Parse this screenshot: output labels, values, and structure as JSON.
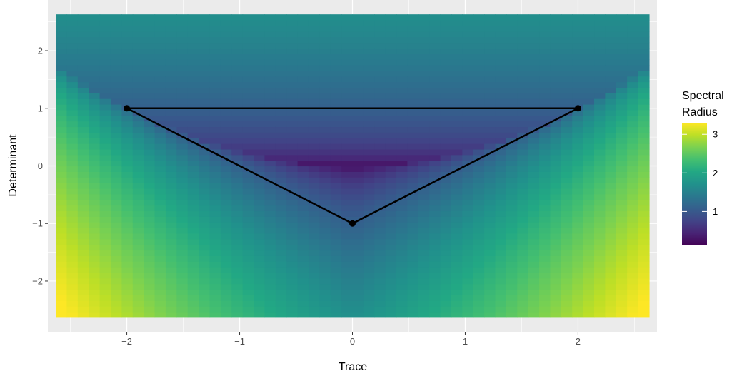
{
  "chart_data": {
    "type": "heatmap",
    "title": "",
    "xlabel": "Trace",
    "ylabel": "Determinant",
    "xlim": [
      -2.7,
      2.7
    ],
    "ylim": [
      -2.88,
      2.88
    ],
    "x_ticks": [
      -2,
      -1,
      0,
      1,
      2
    ],
    "x_tick_labels": [
      "−2",
      "−1",
      "0",
      "1",
      "2"
    ],
    "y_ticks": [
      -2,
      -1,
      0,
      1,
      2
    ],
    "y_tick_labels": [
      "−2",
      "−1",
      "0",
      "1",
      "2"
    ],
    "grid": true,
    "heatmap": {
      "value": "spectral radius of [[0,1],[-det,trace]] (max |eigenvalue|)",
      "x_range": [
        -2.63,
        2.63
      ],
      "y_range": [
        -2.63,
        2.63
      ],
      "colormap": "viridis",
      "color_min": 0.0,
      "color_max": 3.3
    },
    "series": [
      {
        "type": "line",
        "closed": true,
        "color": "#000000",
        "points": [
          {
            "x": -2,
            "y": 1
          },
          {
            "x": 2,
            "y": 1
          },
          {
            "x": 0,
            "y": -1
          }
        ]
      }
    ],
    "legend": {
      "title_lines": [
        "Spectral",
        "Radius"
      ],
      "ticks": [
        1,
        2,
        3
      ],
      "tick_labels": [
        "1",
        "2",
        "3"
      ],
      "placement": "right"
    }
  }
}
